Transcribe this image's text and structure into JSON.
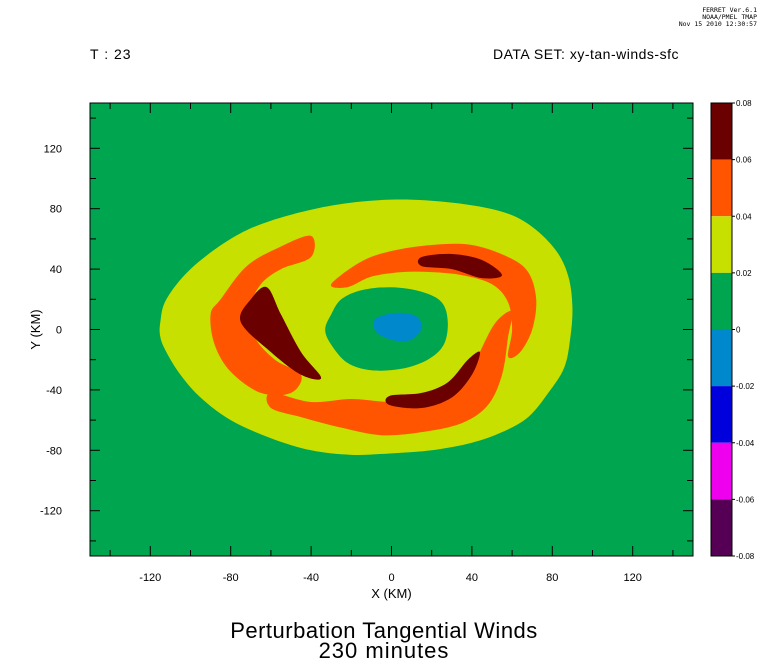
{
  "header": {
    "stamp_lines": [
      "FERRET Ver.6.1",
      "NOAA/PMEL TMAP",
      "Nov 15 2010 12:30:57"
    ],
    "time_label": "T : 23",
    "dataset_label": "DATA SET: xy-tan-winds-sfc"
  },
  "chart_data": {
    "type": "heatmap",
    "title": "Perturbation Tangential Winds",
    "subtitle": "230 minutes",
    "xlabel": "X (KM)",
    "ylabel": "Y (KM)",
    "xlim": [
      -150,
      150
    ],
    "ylim": [
      -150,
      150
    ],
    "x_ticks": [
      -120,
      -80,
      -40,
      0,
      40,
      80,
      120
    ],
    "y_ticks": [
      120,
      80,
      40,
      0,
      -40,
      -80,
      -120
    ],
    "colorbar": {
      "levels": [
        0.08,
        0.06,
        0.04,
        0.02,
        0,
        -0.02,
        -0.04,
        -0.06,
        -0.08
      ],
      "colors": [
        "#6b0000",
        "#ff5500",
        "#c8e000",
        "#00a550",
        "#0088cc",
        "#0000dd",
        "#ee00ee",
        "#550055"
      ]
    },
    "regions": [
      {
        "level": "0.02 to 0.04",
        "color": "#c8e000",
        "description": "outer ring",
        "outline": [
          [
            -115,
            -5
          ],
          [
            -115,
            5
          ],
          [
            -112,
            20
          ],
          [
            -100,
            40
          ],
          [
            -80,
            60
          ],
          [
            -60,
            72
          ],
          [
            -30,
            82
          ],
          [
            0,
            86
          ],
          [
            30,
            84
          ],
          [
            55,
            78
          ],
          [
            70,
            68
          ],
          [
            82,
            52
          ],
          [
            88,
            35
          ],
          [
            90,
            15
          ],
          [
            89,
            -5
          ],
          [
            86,
            -25
          ],
          [
            78,
            -42
          ],
          [
            68,
            -58
          ],
          [
            55,
            -68
          ],
          [
            40,
            -75
          ],
          [
            20,
            -80
          ],
          [
            0,
            -82
          ],
          [
            -20,
            -83
          ],
          [
            -40,
            -80
          ],
          [
            -60,
            -72
          ],
          [
            -80,
            -60
          ],
          [
            -95,
            -45
          ],
          [
            -105,
            -30
          ],
          [
            -112,
            -15
          ]
        ]
      },
      {
        "level": "0 to 0.02",
        "color": "#00a550",
        "description": "inner core",
        "outline": [
          [
            -30,
            10
          ],
          [
            -25,
            20
          ],
          [
            -15,
            26
          ],
          [
            0,
            28
          ],
          [
            15,
            25
          ],
          [
            25,
            18
          ],
          [
            28,
            5
          ],
          [
            26,
            -10
          ],
          [
            18,
            -20
          ],
          [
            5,
            -26
          ],
          [
            -10,
            -27
          ],
          [
            -22,
            -22
          ],
          [
            -30,
            -10
          ],
          [
            -33,
            0
          ]
        ]
      },
      {
        "level": "-0.02 to 0",
        "color": "#0088cc",
        "description": "center patch",
        "outline": [
          [
            -8,
            7
          ],
          [
            2,
            11
          ],
          [
            12,
            9
          ],
          [
            15,
            2
          ],
          [
            12,
            -5
          ],
          [
            6,
            -8
          ],
          [
            -2,
            -6
          ],
          [
            -8,
            -1
          ]
        ]
      },
      {
        "level": "0.04 to 0.06",
        "color": "#ff5500",
        "description": "NE spiral band",
        "outline": [
          [
            -30,
            30
          ],
          [
            -15,
            45
          ],
          [
            0,
            52
          ],
          [
            20,
            56
          ],
          [
            40,
            56
          ],
          [
            58,
            48
          ],
          [
            68,
            38
          ],
          [
            72,
            20
          ],
          [
            70,
            0
          ],
          [
            64,
            -15
          ],
          [
            58,
            -18
          ],
          [
            60,
            0
          ],
          [
            58,
            18
          ],
          [
            50,
            30
          ],
          [
            35,
            36
          ],
          [
            20,
            38
          ],
          [
            5,
            38
          ],
          [
            -10,
            35
          ],
          [
            -22,
            28
          ]
        ]
      },
      {
        "level": "0.04 to 0.06",
        "color": "#ff5500",
        "description": "S spiral band",
        "outline": [
          [
            -60,
            -42
          ],
          [
            -40,
            -48
          ],
          [
            -20,
            -46
          ],
          [
            0,
            -48
          ],
          [
            20,
            -46
          ],
          [
            35,
            -38
          ],
          [
            40,
            -28
          ],
          [
            45,
            -12
          ],
          [
            52,
            5
          ],
          [
            60,
            12
          ],
          [
            58,
            -5
          ],
          [
            55,
            -30
          ],
          [
            48,
            -50
          ],
          [
            35,
            -62
          ],
          [
            15,
            -68
          ],
          [
            -5,
            -70
          ],
          [
            -25,
            -65
          ],
          [
            -45,
            -58
          ],
          [
            -60,
            -52
          ]
        ]
      },
      {
        "level": "0.04 to 0.06",
        "color": "#ff5500",
        "description": "W spiral band",
        "outline": [
          [
            -85,
            20
          ],
          [
            -90,
            10
          ],
          [
            -88,
            -10
          ],
          [
            -80,
            -28
          ],
          [
            -65,
            -42
          ],
          [
            -50,
            -42
          ],
          [
            -45,
            -30
          ],
          [
            -58,
            -20
          ],
          [
            -68,
            -5
          ],
          [
            -70,
            15
          ],
          [
            -65,
            30
          ],
          [
            -55,
            40
          ],
          [
            -40,
            48
          ],
          [
            -40,
            62
          ],
          [
            -55,
            55
          ],
          [
            -72,
            42
          ]
        ]
      },
      {
        "level": "0.06 to 0.08",
        "color": "#6b0000",
        "description": "NE maximum",
        "outline": [
          [
            15,
            48
          ],
          [
            30,
            50
          ],
          [
            45,
            46
          ],
          [
            55,
            36
          ],
          [
            45,
            34
          ],
          [
            30,
            40
          ],
          [
            15,
            42
          ]
        ]
      },
      {
        "level": "0.06 to 0.08",
        "color": "#6b0000",
        "description": "SE maximum",
        "outline": [
          [
            -1,
            -50
          ],
          [
            15,
            -52
          ],
          [
            30,
            -45
          ],
          [
            40,
            -30
          ],
          [
            44,
            -15
          ],
          [
            38,
            -20
          ],
          [
            28,
            -35
          ],
          [
            15,
            -42
          ],
          [
            -1,
            -44
          ]
        ]
      },
      {
        "level": "0.06 to 0.08",
        "color": "#6b0000",
        "description": "W maximum",
        "outline": [
          [
            -75,
            5
          ],
          [
            -70,
            20
          ],
          [
            -62,
            28
          ],
          [
            -55,
            10
          ],
          [
            -45,
            -15
          ],
          [
            -35,
            -32
          ],
          [
            -45,
            -30
          ],
          [
            -60,
            -15
          ]
        ]
      }
    ]
  }
}
